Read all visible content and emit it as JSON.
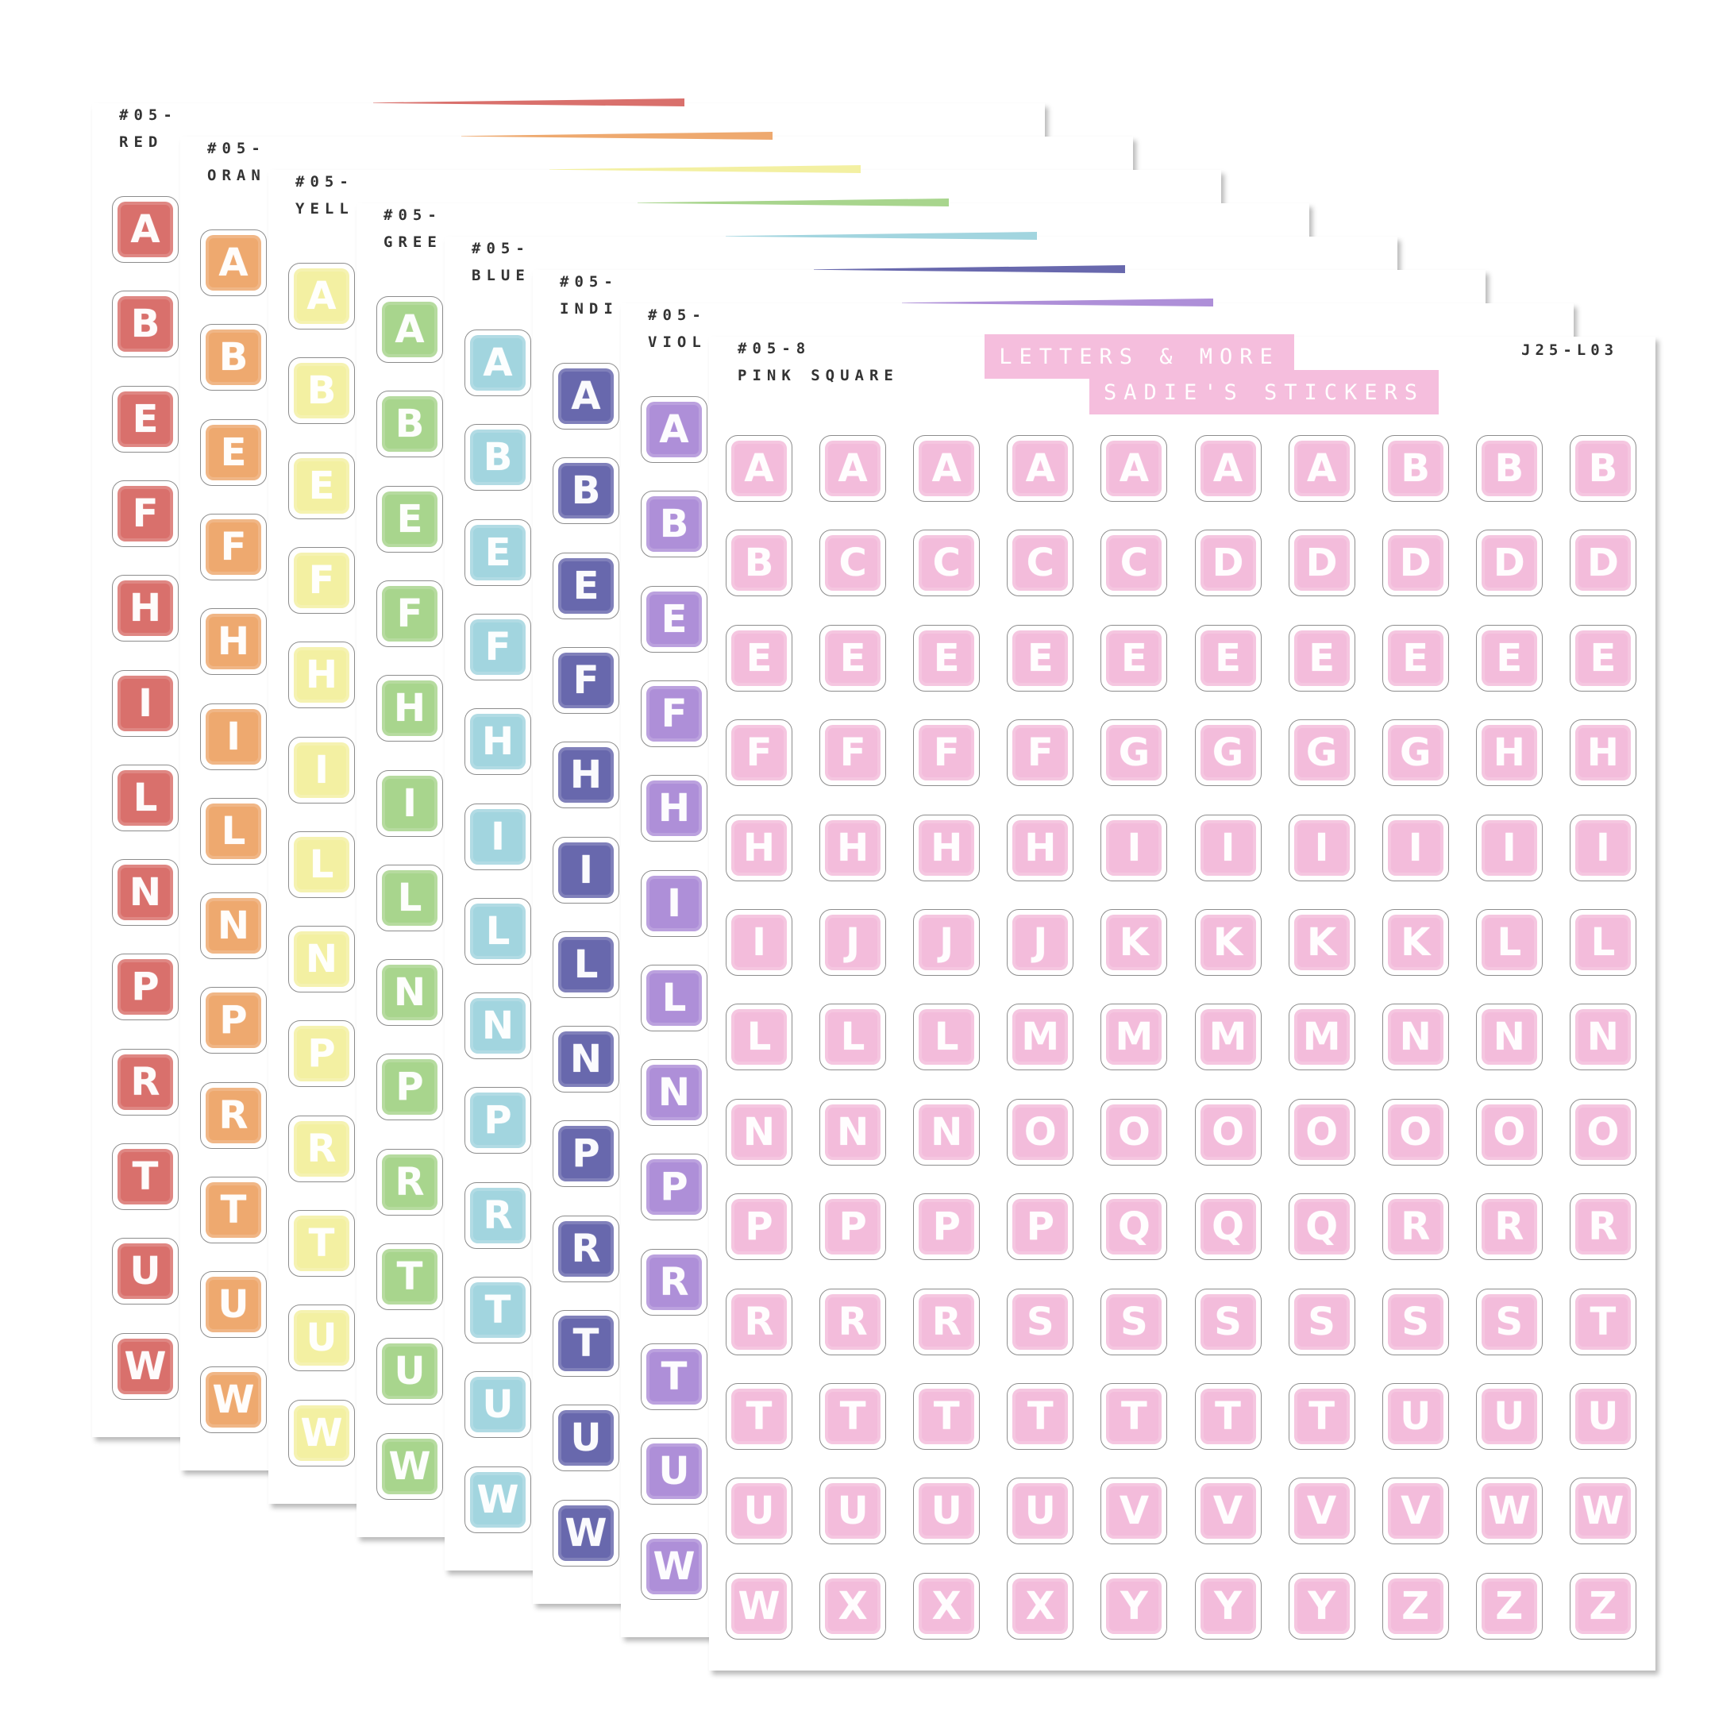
{
  "sheets": [
    {
      "label_line1": "#05-",
      "label_line2": "RED",
      "color": "#d9706c",
      "letters": [
        "A",
        "B",
        "E",
        "F",
        "H",
        "I",
        "L",
        "N",
        "P",
        "R",
        "T",
        "U",
        "W"
      ]
    },
    {
      "label_line1": "#05-",
      "label_line2": "ORAN",
      "color": "#eea96f",
      "letters": [
        "A",
        "B",
        "E",
        "F",
        "H",
        "I",
        "L",
        "N",
        "P",
        "R",
        "T",
        "U",
        "W"
      ]
    },
    {
      "label_line1": "#05-",
      "label_line2": "YELL",
      "color": "#f3f0a2",
      "letters": [
        "A",
        "B",
        "E",
        "F",
        "H",
        "I",
        "L",
        "N",
        "P",
        "R",
        "T",
        "U",
        "W"
      ]
    },
    {
      "label_line1": "#05-",
      "label_line2": "GREE",
      "color": "#a8d58d",
      "letters": [
        "A",
        "B",
        "E",
        "F",
        "H",
        "I",
        "L",
        "N",
        "P",
        "R",
        "T",
        "U",
        "W"
      ]
    },
    {
      "label_line1": "#05-",
      "label_line2": "BLUE",
      "color": "#a2d5df",
      "letters": [
        "A",
        "B",
        "E",
        "F",
        "H",
        "I",
        "L",
        "N",
        "P",
        "R",
        "T",
        "U",
        "W"
      ]
    },
    {
      "label_line1": "#05-",
      "label_line2": "INDI",
      "color": "#6868ad",
      "letters": [
        "A",
        "B",
        "E",
        "F",
        "H",
        "I",
        "L",
        "N",
        "P",
        "R",
        "T",
        "U",
        "W"
      ]
    },
    {
      "label_line1": "#05-",
      "label_line2": "VIOL",
      "color": "#ae8fd8",
      "letters": [
        "A",
        "B",
        "E",
        "F",
        "H",
        "I",
        "L",
        "N",
        "P",
        "R",
        "T",
        "U",
        "W"
      ]
    },
    {
      "label_line1": "#05-8",
      "label_line2": "PINK SQUARE",
      "color": "#f3bcdb",
      "letters": [
        "A",
        "A",
        "A",
        "A",
        "A",
        "A",
        "A",
        "B",
        "B",
        "B",
        "B",
        "C",
        "C",
        "C",
        "C",
        "D",
        "D",
        "D",
        "D",
        "D",
        "E",
        "E",
        "E",
        "E",
        "E",
        "E",
        "E",
        "E",
        "E",
        "E",
        "F",
        "F",
        "F",
        "F",
        "G",
        "G",
        "G",
        "G",
        "H",
        "H",
        "H",
        "H",
        "H",
        "H",
        "I",
        "I",
        "I",
        "I",
        "I",
        "I",
        "I",
        "J",
        "J",
        "J",
        "K",
        "K",
        "K",
        "K",
        "L",
        "L",
        "L",
        "L",
        "L",
        "M",
        "M",
        "M",
        "M",
        "N",
        "N",
        "N",
        "N",
        "N",
        "N",
        "O",
        "O",
        "O",
        "O",
        "O",
        "O",
        "O",
        "P",
        "P",
        "P",
        "P",
        "Q",
        "Q",
        "Q",
        "R",
        "R",
        "R",
        "R",
        "R",
        "R",
        "S",
        "S",
        "S",
        "S",
        "S",
        "S",
        "T",
        "T",
        "T",
        "T",
        "T",
        "T",
        "T",
        "T",
        "U",
        "U",
        "U",
        "U",
        "U",
        "U",
        "U",
        "V",
        "V",
        "V",
        "V",
        "W",
        "W",
        "W",
        "X",
        "X",
        "X",
        "Y",
        "Y",
        "Y",
        "Z",
        "Z",
        "Z"
      ]
    }
  ],
  "accent_colors": [
    "#d9706c",
    "#eea96f",
    "#f3f0a2",
    "#a8d58d",
    "#a2d5df",
    "#6868ad",
    "#ae8fd8"
  ],
  "banner": {
    "line1": "LETTERS & MORE",
    "line2": "SADIE'S STICKERS"
  },
  "product_code": "J25-L03"
}
